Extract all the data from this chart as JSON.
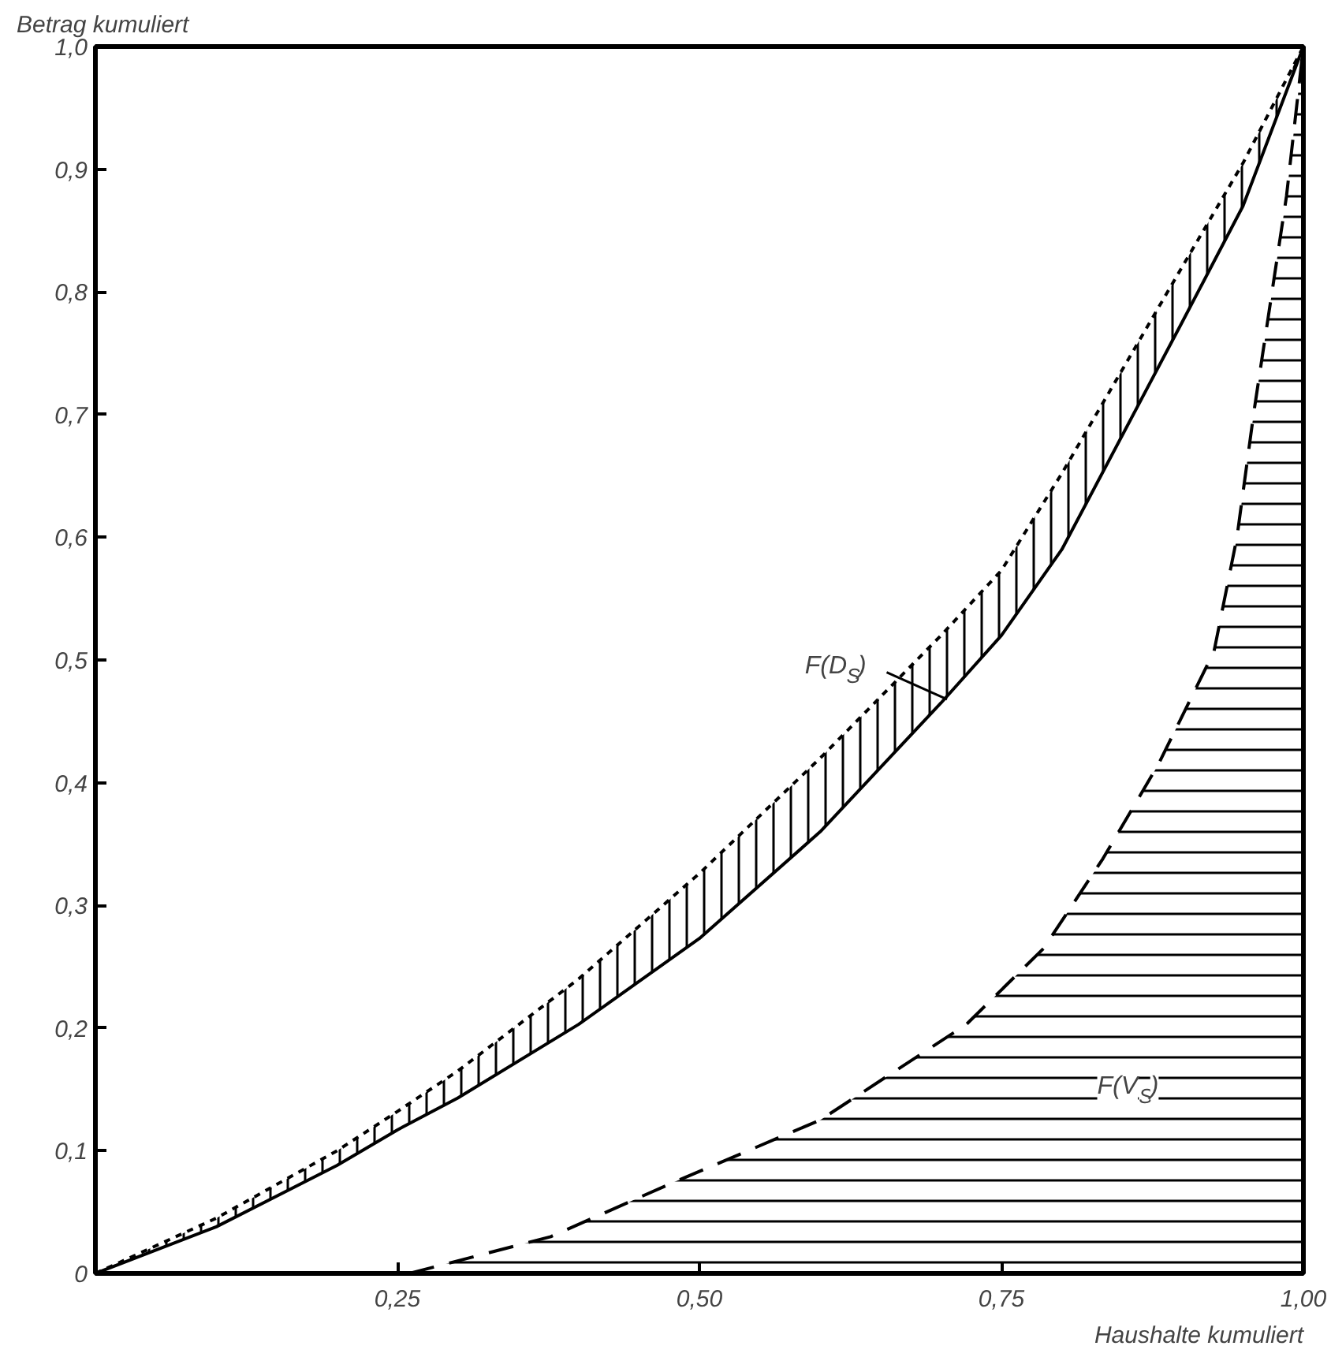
{
  "chart_data": {
    "type": "line",
    "xlabel": "Haushalte kumuliert",
    "ylabel": "Betrag kumuliert",
    "xlim": [
      0,
      1
    ],
    "ylim": [
      0,
      1
    ],
    "xticks": [
      {
        "value": 0,
        "label": null
      },
      {
        "value": 0.25,
        "label": "0,25"
      },
      {
        "value": 0.5,
        "label": "0,50"
      },
      {
        "value": 0.75,
        "label": "0,75"
      },
      {
        "value": 1,
        "label": "1,00"
      }
    ],
    "yticks": [
      {
        "value": 0,
        "label": "0"
      },
      {
        "value": 0.1,
        "label": "0,1"
      },
      {
        "value": 0.2,
        "label": "0,2"
      },
      {
        "value": 0.3,
        "label": "0,3"
      },
      {
        "value": 0.4,
        "label": "0,4"
      },
      {
        "value": 0.5,
        "label": "0,5"
      },
      {
        "value": 0.6,
        "label": "0,6"
      },
      {
        "value": 0.7,
        "label": "0,7"
      },
      {
        "value": 0.8,
        "label": "0,8"
      },
      {
        "value": 0.9,
        "label": "0,9"
      },
      {
        "value": 1,
        "label": "1,0"
      }
    ],
    "grid": false,
    "series": [
      {
        "color": "#000000",
        "line_style": "dotted",
        "x": [
          0,
          0.1,
          0.2,
          0.25,
          0.3,
          0.4,
          0.5,
          0.6,
          0.7,
          0.75,
          0.8,
          0.9,
          0.95,
          1
        ],
        "values": [
          0,
          0.045,
          0.1,
          0.132,
          0.165,
          0.24,
          0.326,
          0.42,
          0.52,
          0.573,
          0.652,
          0.821,
          0.905,
          1
        ],
        "lower": [
          0,
          0.038,
          0.088,
          0.117,
          0.143,
          0.203,
          0.273,
          0.36,
          0.465,
          0.52,
          0.59,
          0.776,
          0.87,
          1
        ],
        "upper": [
          0,
          0.045,
          0.1,
          0.132,
          0.165,
          0.24,
          0.326,
          0.42,
          0.52,
          0.573,
          0.652,
          0.821,
          0.905,
          1
        ]
      },
      {
        "color": "#000000",
        "line_style": "solid",
        "x": [
          0,
          0.1,
          0.2,
          0.25,
          0.3,
          0.4,
          0.5,
          0.6,
          0.7,
          0.75,
          0.8,
          0.9,
          0.95,
          1
        ],
        "values": [
          0,
          0.038,
          0.088,
          0.117,
          0.143,
          0.203,
          0.273,
          0.36,
          0.465,
          0.52,
          0.59,
          0.776,
          0.87,
          1
        ]
      },
      {
        "type": "area",
        "color": "#000000",
        "line_style": "dashed",
        "x": [
          0.26,
          0.377,
          0.478,
          0.6,
          0.721,
          0.785,
          0.834,
          0.88,
          0.926,
          0.945,
          0.959,
          0.986,
          1
        ],
        "values": [
          0,
          0.03,
          0.074,
          0.125,
          0.203,
          0.265,
          0.338,
          0.415,
          0.507,
          0.6,
          0.702,
          0.878,
          1
        ]
      }
    ],
    "annotations": [
      {
        "text": "F(D$_{S}$)",
        "x": 0.705,
        "y": 0.468
      },
      "F(V$_{S}$)"
    ]
  }
}
